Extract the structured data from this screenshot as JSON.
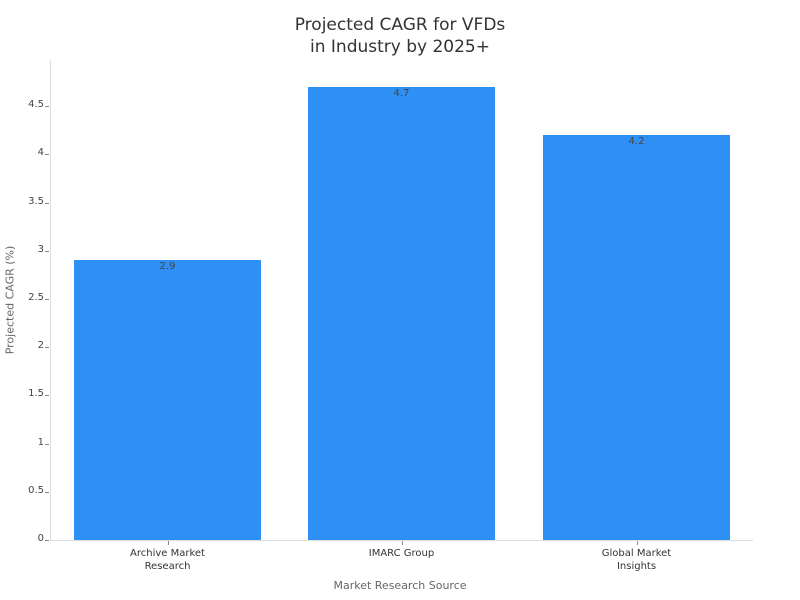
{
  "chart_data": {
    "type": "bar",
    "title": "Projected CAGR for VFDs in Industry by 2025+",
    "title_lines": [
      "Projected CAGR for VFDs",
      "in Industry by 2025+"
    ],
    "categories": [
      "Archive Market Research",
      "IMARC Group",
      "Global Market Insights"
    ],
    "category_lines": [
      [
        "Archive Market",
        "Research"
      ],
      [
        "IMARC Group"
      ],
      [
        "Global Market",
        "Insights"
      ]
    ],
    "values": [
      2.9,
      4.7,
      4.2
    ],
    "value_labels": [
      "2.9",
      "4.7",
      "4.2"
    ],
    "xlabel": "Market Research Source",
    "ylabel": "Projected CAGR (%)",
    "ylim": [
      0,
      4.95
    ],
    "yticks": [
      "0",
      "0.5",
      "1",
      "1.5",
      "2",
      "2.5",
      "3",
      "3.5",
      "4",
      "4.5"
    ],
    "grid": false,
    "legend": null,
    "bar_color": "#2e90f5"
  }
}
